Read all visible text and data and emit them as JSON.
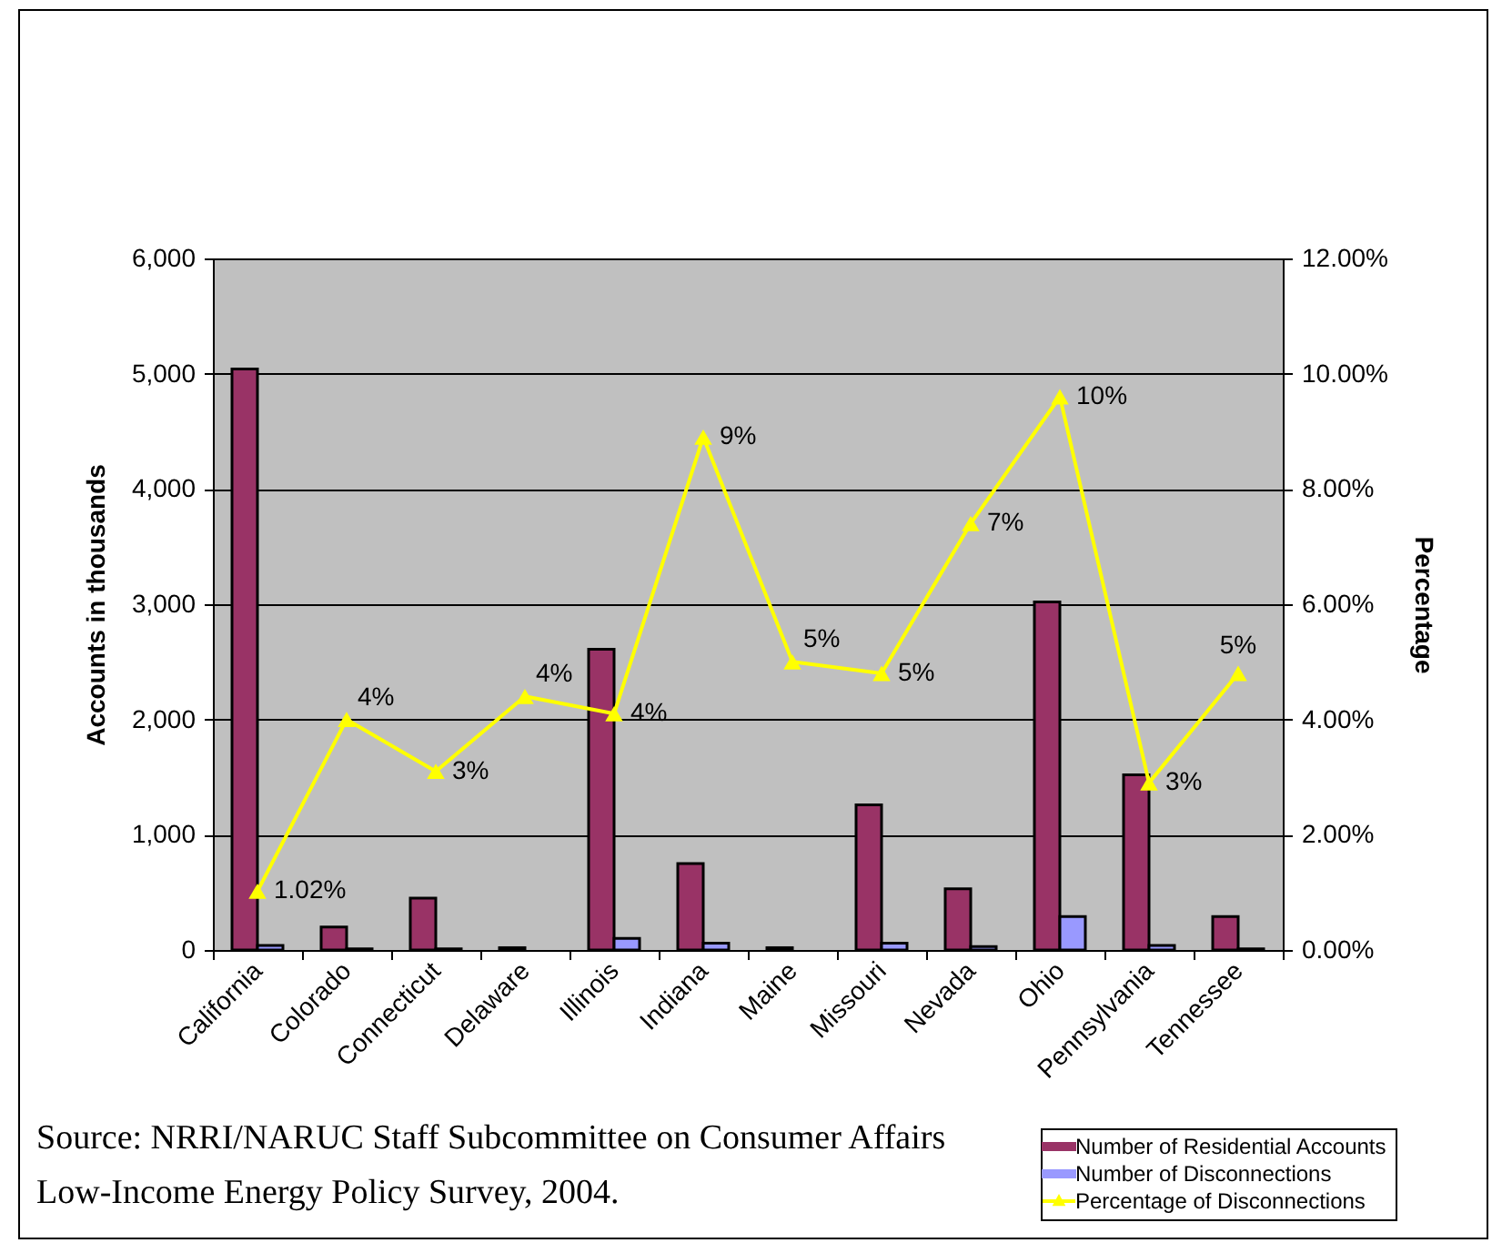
{
  "chart_data": {
    "type": "bar",
    "categories": [
      "California",
      "Colorado",
      "Connecticut",
      "Delaware",
      "Illinois",
      "Indiana",
      "Maine",
      "Missouri",
      "Nevada",
      "Ohio",
      "Pennsylvania",
      "Tennessee"
    ],
    "series": [
      {
        "name": "Number of Residential Accounts",
        "color": "#993366",
        "values": [
          5040,
          200,
          450,
          20,
          2610,
          750,
          20,
          1260,
          530,
          3020,
          1520,
          290
        ]
      },
      {
        "name": "Number of Disconnections",
        "color": "#9999ff",
        "values": [
          40,
          10,
          10,
          null,
          100,
          60,
          null,
          60,
          30,
          290,
          40,
          10
        ]
      },
      {
        "name": "Percentage of Disconnections",
        "type": "line",
        "axis": "y2",
        "color": "#ffff00",
        "values": [
          1.02,
          4,
          3.1,
          4.4,
          4.1,
          8.9,
          5,
          4.8,
          7.4,
          9.6,
          2.9,
          4.8
        ],
        "value_labels": [
          "1.02%",
          "4%",
          "3%",
          "4%",
          "4%",
          "9%",
          "5%",
          "5%",
          "7%",
          "10%",
          "3%",
          "5%"
        ]
      }
    ],
    "ylabel": "Accounts in thousands",
    "y2label": "Percentage",
    "ylim": [
      0,
      6000
    ],
    "yticks": [
      0,
      {
        "value": 1000,
        "label": "1,000"
      },
      {
        "value": 2000,
        "label": "2,000"
      },
      {
        "value": 3000,
        "label": "3,000"
      },
      {
        "value": 4000,
        "label": "4,000"
      },
      {
        "value": 5000,
        "label": "5,000"
      },
      {
        "value": 6000,
        "label": "6,000"
      }
    ],
    "y2lim": [
      0,
      12
    ],
    "y2ticks": [
      {
        "value": 0,
        "label": "0.00%"
      },
      {
        "value": 2,
        "label": "2.00%"
      },
      {
        "value": 4,
        "label": "4.00%"
      },
      {
        "value": 6,
        "label": "6.00%"
      },
      {
        "value": 8,
        "label": "8.00%"
      },
      {
        "value": 10,
        "label": "10.00%"
      },
      {
        "value": 12,
        "label": "12.00%"
      }
    ],
    "grid": "y",
    "legend": "bottom right",
    "marker": "triangle",
    "annotations": [
      "Source: NRRI/NARUC Staff Subcommittee on Consumer Affairs Low-Income Energy Policy Survey, 2004."
    ]
  }
}
